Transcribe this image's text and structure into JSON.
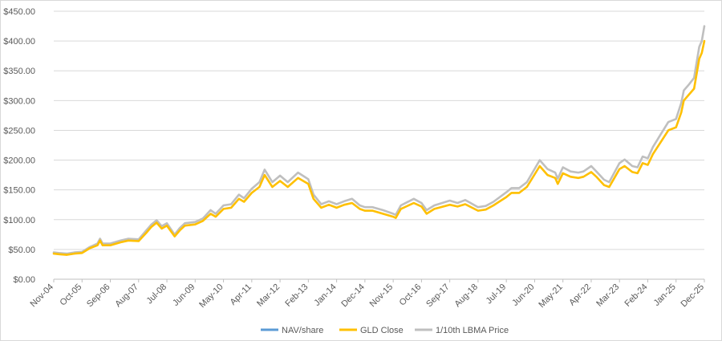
{
  "chart_data": {
    "type": "line",
    "title": "",
    "xlabel": "",
    "ylabel": "",
    "ylim": [
      0,
      450
    ],
    "y_ticks": [
      "$0.00",
      "$50.00",
      "$100.00",
      "$150.00",
      "$200.00",
      "$250.00",
      "$300.00",
      "$350.00",
      "$400.00",
      "$450.00"
    ],
    "x_ticks": [
      "Nov-04",
      "Oct-05",
      "Sep-06",
      "Aug-07",
      "Jul-08",
      "Jun-09",
      "May-10",
      "Apr-11",
      "Mar-12",
      "Feb-13",
      "Jan-14",
      "Dec-14",
      "Nov-15",
      "Oct-16",
      "Sep-17",
      "Aug-18",
      "Jul-19",
      "Jun-20",
      "May-21",
      "Apr-22",
      "Mar-23",
      "Feb-24",
      "Jan-25",
      "Dec-25"
    ],
    "grid": "horizontal",
    "legend_position": "bottom",
    "colors": {
      "nav": "#5b9bd5",
      "gld": "#ffc000",
      "lbma": "#bfbfbf",
      "grid": "#d9d9d9",
      "axis": "#bfbfbf",
      "text": "#595959"
    },
    "x": [
      "Nov-04",
      "Jan-05",
      "Apr-05",
      "Jul-05",
      "Oct-05",
      "Jan-06",
      "Apr-06",
      "May-06",
      "Jun-06",
      "Sep-06",
      "Jan-07",
      "Apr-07",
      "Aug-07",
      "Nov-07",
      "Jan-08",
      "Mar-08",
      "May-08",
      "Jul-08",
      "Oct-08",
      "Dec-08",
      "Feb-09",
      "Jun-09",
      "Sep-09",
      "Dec-09",
      "Feb-10",
      "May-10",
      "Aug-10",
      "Nov-10",
      "Jan-11",
      "Apr-11",
      "Jul-11",
      "Sep-11",
      "Dec-11",
      "Mar-12",
      "Jun-12",
      "Oct-12",
      "Feb-13",
      "Apr-13",
      "Jul-13",
      "Oct-13",
      "Jan-14",
      "Apr-14",
      "Jul-14",
      "Oct-14",
      "Dec-14",
      "Mar-15",
      "Jul-15",
      "Nov-15",
      "Dec-15",
      "Feb-16",
      "Jul-16",
      "Oct-16",
      "Dec-16",
      "Mar-17",
      "Sep-17",
      "Dec-17",
      "Mar-18",
      "Aug-18",
      "Nov-18",
      "Feb-19",
      "Jul-19",
      "Sep-19",
      "Dec-19",
      "Mar-20",
      "Aug-20",
      "Nov-20",
      "Feb-21",
      "Mar-21",
      "May-21",
      "Aug-21",
      "Nov-21",
      "Jan-22",
      "Apr-22",
      "Jun-22",
      "Sep-22",
      "Nov-22",
      "Mar-23",
      "May-23",
      "Aug-23",
      "Oct-23",
      "Dec-23",
      "Feb-24",
      "Apr-24",
      "Jul-24",
      "Oct-24",
      "Jan-25",
      "Mar-25",
      "Apr-25",
      "Jun-25",
      "Aug-25",
      "Oct-25",
      "Nov-25",
      "Dec-25"
    ],
    "series": [
      {
        "name": "NAV/share",
        "values": [
          43,
          42,
          41,
          43,
          44,
          52,
          57,
          65,
          57,
          57,
          62,
          65,
          64,
          78,
          88,
          95,
          85,
          90,
          72,
          82,
          90,
          92,
          98,
          110,
          105,
          118,
          120,
          135,
          130,
          145,
          155,
          175,
          155,
          165,
          155,
          170,
          160,
          135,
          120,
          125,
          120,
          125,
          128,
          118,
          115,
          115,
          110,
          105,
          103,
          118,
          128,
          122,
          110,
          118,
          125,
          122,
          126,
          115,
          117,
          124,
          138,
          145,
          145,
          155,
          190,
          175,
          170,
          160,
          178,
          172,
          170,
          172,
          180,
          172,
          158,
          155,
          185,
          190,
          180,
          178,
          195,
          192,
          210,
          230,
          250,
          255,
          280,
          300,
          310,
          320,
          370,
          380,
          400
        ]
      },
      {
        "name": "GLD Close",
        "values": [
          43,
          42,
          41,
          43,
          44,
          52,
          57,
          65,
          57,
          57,
          62,
          65,
          64,
          78,
          88,
          95,
          85,
          90,
          72,
          82,
          90,
          92,
          98,
          110,
          105,
          118,
          120,
          135,
          130,
          145,
          155,
          175,
          155,
          165,
          155,
          170,
          160,
          135,
          120,
          125,
          120,
          125,
          128,
          118,
          115,
          115,
          110,
          105,
          103,
          118,
          128,
          122,
          110,
          118,
          125,
          122,
          126,
          115,
          117,
          124,
          138,
          145,
          145,
          155,
          190,
          175,
          170,
          160,
          178,
          172,
          170,
          172,
          180,
          172,
          158,
          155,
          185,
          190,
          180,
          178,
          195,
          192,
          210,
          230,
          250,
          255,
          280,
          300,
          310,
          320,
          370,
          380,
          400
        ]
      },
      {
        "name": "1/10th LBMA Price",
        "values": [
          45,
          44,
          43,
          45,
          46,
          54,
          60,
          68,
          60,
          60,
          65,
          68,
          67,
          82,
          92,
          99,
          89,
          94,
          75,
          86,
          94,
          96,
          102,
          116,
          110,
          124,
          126,
          142,
          136,
          152,
          163,
          184,
          163,
          174,
          163,
          179,
          168,
          142,
          126,
          131,
          126,
          131,
          135,
          124,
          121,
          121,
          116,
          110,
          108,
          124,
          135,
          128,
          116,
          124,
          132,
          128,
          133,
          121,
          123,
          130,
          146,
          153,
          153,
          163,
          200,
          185,
          179,
          169,
          188,
          181,
          179,
          181,
          190,
          181,
          167,
          163,
          195,
          201,
          190,
          188,
          206,
          203,
          222,
          243,
          264,
          269,
          296,
          317,
          327,
          338,
          390,
          400,
          425
        ]
      }
    ]
  },
  "legend": [
    "NAV/share",
    "GLD Close",
    "1/10th LBMA Price"
  ]
}
